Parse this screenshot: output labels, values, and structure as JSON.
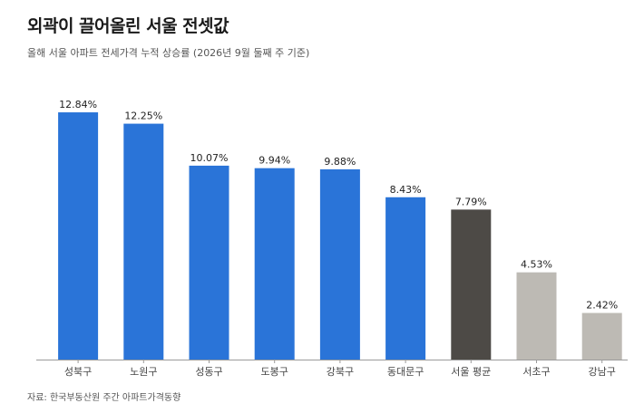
{
  "chart_data": {
    "type": "bar",
    "title": "외곽이 끌어올린 서울 전셋값",
    "subtitle": "올해 서울 아파트 전세가격 누적 상승률 (2026년 9월 둘째 주 기준)",
    "source": "자료: 한국부동산원 주간 아파트가격동향",
    "categories": [
      "성북구",
      "노원구",
      "성동구",
      "도봉구",
      "강북구",
      "동대문구",
      "서울 평균",
      "서초구",
      "강남구"
    ],
    "values": [
      12.84,
      12.25,
      10.07,
      9.94,
      9.88,
      8.43,
      7.79,
      4.53,
      2.42
    ],
    "value_labels": [
      "12.84%",
      "12.25%",
      "10.07%",
      "9.94%",
      "9.88%",
      "8.43%",
      "7.79%",
      "4.53%",
      "2.42%"
    ],
    "bar_colors": [
      "#2a74d8",
      "#2a74d8",
      "#2a74d8",
      "#2a74d8",
      "#2a74d8",
      "#2a74d8",
      "#4d4a46",
      "#bdbab4",
      "#bdbab4"
    ],
    "ylim": [
      0,
      13.5
    ],
    "grid": false
  }
}
